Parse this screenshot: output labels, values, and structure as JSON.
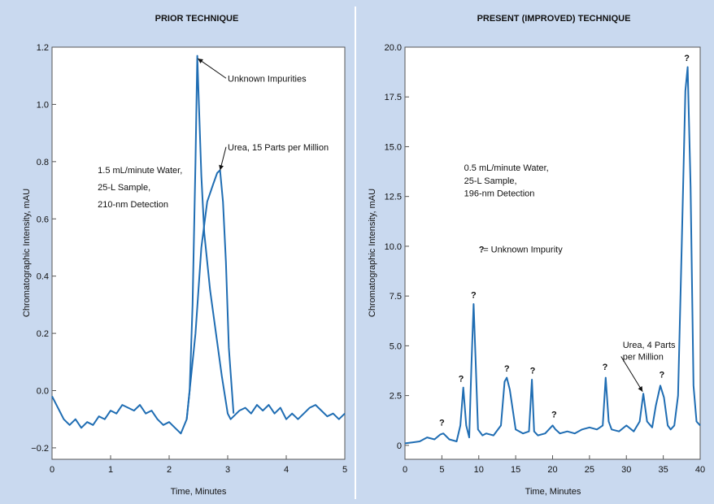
{
  "colors": {
    "background": "#c9d9ef",
    "plot": "#ffffff",
    "line": "#1f6db3",
    "frame": "#555555"
  },
  "chart_data": [
    {
      "type": "line",
      "title": "PRIOR TECHNIQUE",
      "xlabel": "Time, Minutes",
      "ylabel": "Chromatographic Intensity, mAU",
      "xlim": [
        0,
        5
      ],
      "ylim": [
        -0.24,
        1.2
      ],
      "xticks": [
        0,
        1,
        2,
        3,
        4,
        5
      ],
      "xtick_labels": [
        "0",
        "1",
        "2",
        "3",
        "4",
        "5"
      ],
      "yticks": [
        -0.2,
        0,
        0.2,
        0.4,
        0.6,
        0.8,
        1.0,
        1.2
      ],
      "ytick_labels": [
        "−0.2",
        "0.0",
        "0.2",
        "0.4",
        "0.6",
        "0.8",
        "1.0",
        "1.2"
      ],
      "grid": false,
      "annotations": [
        {
          "text": "Unknown Impurities",
          "x": 3.0,
          "y": 1.08,
          "arrow_to": [
            2.49,
            1.16
          ]
        },
        {
          "text": "Urea, 15 Parts per Million",
          "x": 3.0,
          "y": 0.84,
          "arrow_to": [
            2.87,
            0.77
          ]
        },
        {
          "text": "1.5 mL/minute Water,",
          "x": 0.78,
          "y": 0.76
        },
        {
          "text": "25-L Sample,",
          "x": 0.78,
          "y": 0.7
        },
        {
          "text": "210-nm Detection",
          "x": 0.78,
          "y": 0.64
        }
      ],
      "series": [
        {
          "x": [
            0.0,
            0.1,
            0.2,
            0.3,
            0.4,
            0.5,
            0.6,
            0.7,
            0.8,
            0.9,
            1.0,
            1.1,
            1.2,
            1.3,
            1.4,
            1.5,
            1.6,
            1.7,
            1.8,
            1.9,
            2.0,
            2.1,
            2.2,
            2.3,
            2.35,
            2.4,
            2.45,
            2.48,
            2.5,
            2.55,
            2.6,
            2.7,
            2.8,
            2.9,
            3.0,
            3.05,
            3.1,
            3.2,
            3.3,
            3.4,
            3.5,
            3.6,
            3.7,
            3.8,
            3.9,
            4.0,
            4.1,
            4.2,
            4.3,
            4.4,
            4.5,
            4.6,
            4.7,
            4.8,
            4.9,
            5.0
          ],
          "y": [
            -0.02,
            -0.06,
            -0.1,
            -0.12,
            -0.1,
            -0.13,
            -0.11,
            -0.12,
            -0.09,
            -0.1,
            -0.07,
            -0.08,
            -0.05,
            -0.06,
            -0.07,
            -0.05,
            -0.08,
            -0.07,
            -0.1,
            -0.12,
            -0.11,
            -0.13,
            -0.15,
            -0.1,
            0.0,
            0.3,
            0.8,
            1.17,
            1.05,
            0.75,
            0.55,
            0.35,
            0.2,
            0.05,
            -0.08,
            -0.1,
            -0.09,
            -0.07,
            -0.06,
            -0.08,
            -0.05,
            -0.07,
            -0.05,
            -0.08,
            -0.06,
            -0.1,
            -0.08,
            -0.1,
            -0.08,
            -0.06,
            -0.05,
            -0.07,
            -0.09,
            -0.08,
            -0.1,
            -0.08
          ]
        },
        {
          "x": [
            2.3,
            2.45,
            2.55,
            2.65,
            2.75,
            2.82,
            2.87,
            2.92,
            2.97,
            3.02,
            3.1
          ],
          "y": [
            -0.1,
            0.2,
            0.5,
            0.66,
            0.72,
            0.76,
            0.77,
            0.66,
            0.45,
            0.15,
            -0.08
          ]
        }
      ]
    },
    {
      "type": "line",
      "title": "PRESENT (IMPROVED) TECHNIQUE",
      "xlabel": "Time, Minutes",
      "ylabel": "Chromatographic Intensity, mAU",
      "xlim": [
        0,
        40
      ],
      "ylim": [
        -0.7,
        20
      ],
      "xticks": [
        0,
        5,
        10,
        15,
        20,
        25,
        30,
        35,
        40
      ],
      "xtick_labels": [
        "0",
        "5",
        "10",
        "15",
        "20",
        "25",
        "30",
        "35",
        "40"
      ],
      "yticks": [
        0,
        2.5,
        5,
        7.5,
        10,
        12.5,
        15,
        17.5,
        20
      ],
      "ytick_labels": [
        "0",
        "2.5",
        "5.0",
        "7.5",
        "10.0",
        "12.5",
        "15.0",
        "17.5",
        "20.0"
      ],
      "grid": false,
      "annotations": [
        {
          "text": "0.5 mL/minute Water,",
          "x": 8.0,
          "y": 13.8
        },
        {
          "text": "25-L Sample,",
          "x": 8.0,
          "y": 13.15
        },
        {
          "text": "196-nm Detection",
          "x": 8.0,
          "y": 12.5
        },
        {
          "text": "?",
          "x": 10.0,
          "y": 9.7,
          "bold": true
        },
        {
          "text": " = Unknown Impurity",
          "x": 10.6,
          "y": 9.7
        },
        {
          "text": "Urea, 4 Parts",
          "x": 29.5,
          "y": 4.9
        },
        {
          "text": "per Million",
          "x": 29.5,
          "y": 4.3,
          "arrow_to": [
            32.2,
            2.7
          ]
        }
      ],
      "peak_markers": [
        {
          "label": "?",
          "x": 5.0,
          "y": 1.0
        },
        {
          "label": "?",
          "x": 7.6,
          "y": 3.2
        },
        {
          "label": "?",
          "x": 9.3,
          "y": 7.4
        },
        {
          "label": "?",
          "x": 13.8,
          "y": 3.7
        },
        {
          "label": "?",
          "x": 17.3,
          "y": 3.6
        },
        {
          "label": "?",
          "x": 20.2,
          "y": 1.4
        },
        {
          "label": "?",
          "x": 27.1,
          "y": 3.8
        },
        {
          "label": "?",
          "x": 34.8,
          "y": 3.4
        },
        {
          "label": "?",
          "x": 38.2,
          "y": 19.3
        }
      ],
      "series": [
        {
          "x": [
            0,
            1,
            2,
            3,
            4,
            4.8,
            5.2,
            6,
            7,
            7.5,
            7.9,
            8.3,
            8.7,
            9.0,
            9.3,
            9.6,
            9.9,
            10.5,
            11,
            12,
            13,
            13.5,
            13.8,
            14.2,
            15,
            16,
            16.8,
            17.2,
            17.5,
            18,
            19,
            20,
            20.4,
            21,
            22,
            23,
            24,
            25,
            26,
            26.8,
            27.2,
            27.6,
            28,
            29,
            30,
            31,
            31.8,
            32.3,
            32.8,
            33.5,
            34,
            34.6,
            35.1,
            35.6,
            36,
            36.5,
            37,
            37.5,
            38,
            38.3,
            38.7,
            39.1,
            39.5,
            40
          ],
          "y": [
            0.1,
            0.15,
            0.2,
            0.4,
            0.3,
            0.55,
            0.6,
            0.3,
            0.2,
            1.0,
            2.9,
            1.0,
            0.4,
            4.0,
            7.1,
            4.0,
            0.8,
            0.5,
            0.6,
            0.5,
            1.0,
            3.2,
            3.4,
            2.8,
            0.8,
            0.6,
            0.7,
            3.3,
            0.7,
            0.5,
            0.6,
            1.0,
            0.8,
            0.6,
            0.7,
            0.6,
            0.8,
            0.9,
            0.8,
            1.0,
            3.4,
            1.2,
            0.8,
            0.7,
            1.0,
            0.7,
            1.2,
            2.6,
            1.2,
            0.9,
            2.0,
            3.0,
            2.4,
            1.0,
            0.8,
            1.0,
            2.5,
            10.0,
            17.8,
            19.0,
            13.0,
            3.0,
            1.2,
            1.0
          ]
        }
      ]
    }
  ]
}
